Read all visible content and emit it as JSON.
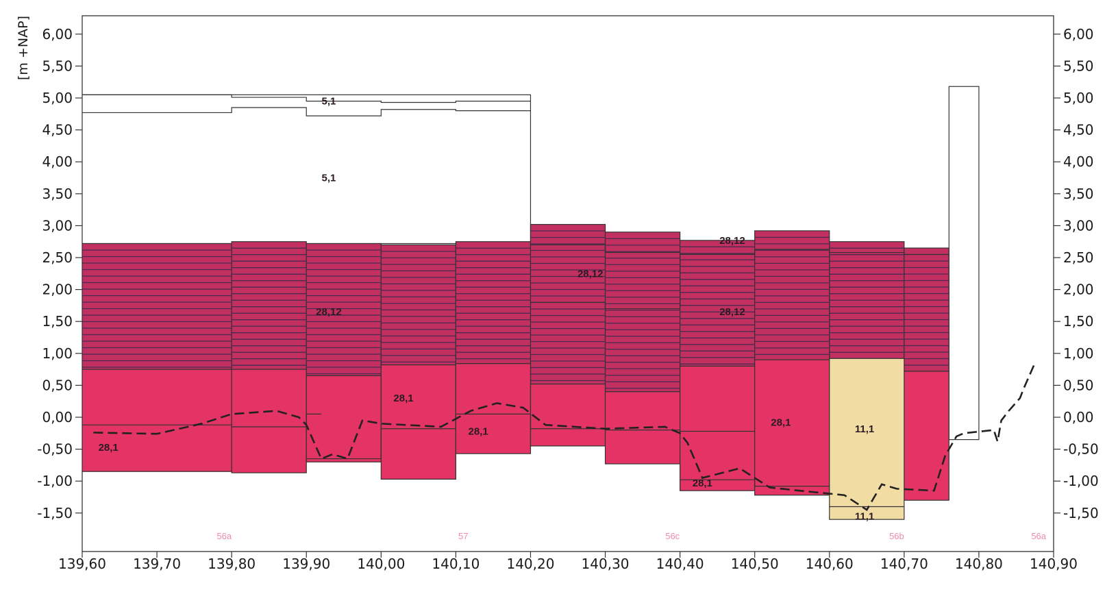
{
  "chart_data": {
    "type": "area",
    "ylabel": "[m +NAP]",
    "xlim": [
      139.6,
      140.9
    ],
    "ylim": [
      -2.0,
      6.0
    ],
    "x_ticks": [
      "139,60",
      "139,70",
      "139,80",
      "139,90",
      "140,00",
      "140,10",
      "140,20",
      "140,30",
      "140,40",
      "140,50",
      "140,60",
      "140,70",
      "140,80",
      "140,90"
    ],
    "x_tick_values": [
      139.6,
      139.7,
      139.8,
      139.9,
      140.0,
      140.1,
      140.2,
      140.3,
      140.4,
      140.5,
      140.6,
      140.7,
      140.8,
      140.9
    ],
    "y_ticks": [
      "6,00",
      "5,50",
      "5,00",
      "4,50",
      "4,00",
      "3,50",
      "3,00",
      "2,50",
      "2,00",
      "1,50",
      "1,00",
      "0,50",
      "0,00",
      "-0,50",
      "-1,00",
      "-1,50"
    ],
    "y_tick_values": [
      6.0,
      5.5,
      5.0,
      4.5,
      4.0,
      3.5,
      3.0,
      2.5,
      2.0,
      1.5,
      1.0,
      0.5,
      0.0,
      -0.5,
      -1.0,
      -1.5
    ],
    "grid": false,
    "colors": {
      "layer_28_12": "#c23062",
      "layer_28_12_line": "#4a2a50",
      "layer_28_1": "#e33465",
      "layer_11_1": "#f1dca4",
      "layer_5_1": "#ffffff",
      "outline": "#333333",
      "ground_line": "#222222",
      "region_text": "#f08aa8",
      "axis": "#333333"
    },
    "layers_28_1": [
      {
        "x0": 139.6,
        "x1": 139.8,
        "ytop": 0.75,
        "ybot": -0.85
      },
      {
        "x0": 139.8,
        "x1": 139.9,
        "ytop": 0.75,
        "ybot": -0.87
      },
      {
        "x0": 139.9,
        "x1": 140.0,
        "ytop": 0.65,
        "ybot": -0.7
      },
      {
        "x0": 140.0,
        "x1": 140.1,
        "ytop": 0.82,
        "ybot": -0.97
      },
      {
        "x0": 140.1,
        "x1": 140.2,
        "ytop": 0.84,
        "ybot": -0.57
      },
      {
        "x0": 140.2,
        "x1": 140.3,
        "ytop": 0.52,
        "ybot": -0.45
      },
      {
        "x0": 140.3,
        "x1": 140.4,
        "ytop": 0.4,
        "ybot": -0.73
      },
      {
        "x0": 140.4,
        "x1": 140.5,
        "ytop": 0.8,
        "ybot": -1.15
      },
      {
        "x0": 140.5,
        "x1": 140.6,
        "ytop": 0.9,
        "ybot": -1.22
      },
      {
        "x0": 140.7,
        "x1": 140.76,
        "ytop": 0.72,
        "ybot": -1.3
      }
    ],
    "layers_28_12": [
      {
        "x0": 139.6,
        "x1": 139.8,
        "ytop": 2.72,
        "ybot": 0.75
      },
      {
        "x0": 139.8,
        "x1": 139.9,
        "ytop": 2.75,
        "ybot": 0.75
      },
      {
        "x0": 139.9,
        "x1": 140.0,
        "ytop": 2.72,
        "ybot": 0.65
      },
      {
        "x0": 140.0,
        "x1": 140.1,
        "ytop": 2.7,
        "ybot": 0.82
      },
      {
        "x0": 140.1,
        "x1": 140.2,
        "ytop": 2.75,
        "ybot": 0.84
      },
      {
        "x0": 140.2,
        "x1": 140.3,
        "ytop": 3.02,
        "ybot": 0.52
      },
      {
        "x0": 140.3,
        "x1": 140.4,
        "ytop": 2.9,
        "ybot": 0.4
      },
      {
        "x0": 140.4,
        "x1": 140.5,
        "ytop": 2.77,
        "ybot": 0.8
      },
      {
        "x0": 140.5,
        "x1": 140.6,
        "ytop": 2.92,
        "ybot": 0.9
      },
      {
        "x0": 140.6,
        "x1": 140.7,
        "ytop": 2.75,
        "ybot": 0.92
      },
      {
        "x0": 140.7,
        "x1": 140.76,
        "ytop": 2.65,
        "ybot": 0.72
      }
    ],
    "layers_11_1": [
      {
        "x0": 140.6,
        "x1": 140.7,
        "ytop": 0.92,
        "ybot": -1.6
      }
    ],
    "layers_5_1": [
      {
        "x0": 139.6,
        "x1": 140.2,
        "ytop": 5.05,
        "ybot": 2.72
      },
      {
        "x0": 140.76,
        "x1": 140.8,
        "ytop": 5.18,
        "ybot": -0.35
      }
    ],
    "inner_lines": [
      {
        "pts": [
          [
            139.6,
            4.77
          ],
          [
            139.8,
            4.77
          ],
          [
            139.8,
            4.85
          ],
          [
            139.9,
            4.85
          ],
          [
            139.9,
            4.72
          ],
          [
            140.0,
            4.72
          ],
          [
            140.0,
            4.82
          ],
          [
            140.1,
            4.82
          ],
          [
            140.1,
            4.8
          ],
          [
            140.2,
            4.8
          ]
        ]
      },
      {
        "pts": [
          [
            139.6,
            5.05
          ],
          [
            139.8,
            5.05
          ],
          [
            139.8,
            5.01
          ],
          [
            139.9,
            5.01
          ],
          [
            139.9,
            4.95
          ],
          [
            140.0,
            4.95
          ],
          [
            140.0,
            4.93
          ],
          [
            140.1,
            4.93
          ],
          [
            140.1,
            4.95
          ],
          [
            140.2,
            4.95
          ]
        ]
      },
      {
        "pts": [
          [
            140.2,
            2.7
          ],
          [
            140.3,
            2.7
          ],
          [
            140.3,
            2.58
          ],
          [
            140.4,
            2.58
          ],
          [
            140.4,
            1.7
          ],
          [
            140.3,
            1.7
          ],
          [
            140.3,
            1.8
          ],
          [
            140.2,
            1.8
          ]
        ]
      },
      {
        "pts": [
          [
            140.4,
            2.55
          ],
          [
            140.5,
            2.55
          ],
          [
            140.5,
            2.63
          ],
          [
            140.6,
            2.63
          ],
          [
            140.6,
            2.58
          ],
          [
            140.7,
            2.58
          ],
          [
            140.7,
            2.55
          ],
          [
            140.76,
            2.55
          ]
        ]
      },
      {
        "pts": [
          [
            139.6,
            -0.12
          ],
          [
            139.8,
            -0.12
          ],
          [
            139.8,
            -0.15
          ],
          [
            139.9,
            -0.15
          ],
          [
            139.9,
            0.05
          ],
          [
            139.92,
            0.05
          ]
        ]
      },
      {
        "pts": [
          [
            139.9,
            -0.65
          ],
          [
            140.0,
            -0.65
          ],
          [
            140.0,
            -0.18
          ],
          [
            140.1,
            -0.18
          ],
          [
            140.1,
            0.05
          ],
          [
            140.2,
            0.05
          ],
          [
            140.2,
            -0.18
          ],
          [
            140.3,
            -0.18
          ],
          [
            140.3,
            -0.2
          ],
          [
            140.4,
            -0.2
          ],
          [
            140.4,
            -0.22
          ],
          [
            140.5,
            -0.22
          ]
        ]
      },
      {
        "pts": [
          [
            140.4,
            -0.98
          ],
          [
            140.5,
            -0.98
          ],
          [
            140.5,
            -1.08
          ],
          [
            140.6,
            -1.08
          ]
        ]
      },
      {
        "pts": [
          [
            140.6,
            -1.4
          ],
          [
            140.7,
            -1.4
          ]
        ]
      }
    ],
    "ground_line": {
      "x": [
        139.615,
        139.7,
        139.76,
        139.8,
        139.86,
        139.89,
        139.9,
        139.92,
        139.935,
        139.955,
        139.975,
        140.0,
        140.08,
        140.12,
        140.155,
        140.19,
        140.22,
        140.3,
        140.38,
        140.4,
        140.41,
        140.43,
        140.48,
        140.5,
        140.52,
        140.56,
        140.62,
        140.65,
        140.67,
        140.69,
        140.74,
        140.755,
        140.77,
        140.78,
        140.82,
        140.825,
        140.83,
        140.84,
        140.855,
        140.86,
        140.875
      ],
      "y": [
        -0.24,
        -0.26,
        -0.1,
        0.05,
        0.1,
        0.0,
        -0.12,
        -0.65,
        -0.58,
        -0.65,
        -0.05,
        -0.1,
        -0.15,
        0.1,
        0.22,
        0.15,
        -0.12,
        -0.18,
        -0.15,
        -0.25,
        -0.4,
        -0.95,
        -0.8,
        -0.95,
        -1.1,
        -1.15,
        -1.22,
        -1.45,
        -1.05,
        -1.12,
        -1.15,
        -0.6,
        -0.3,
        -0.25,
        -0.2,
        -0.38,
        -0.05,
        0.1,
        0.3,
        0.45,
        0.85
      ]
    },
    "zone_labels": [
      {
        "text": "5,1",
        "x": 139.93,
        "y": 4.95
      },
      {
        "text": "5,1",
        "x": 139.93,
        "y": 3.75
      },
      {
        "text": "28,12",
        "x": 139.93,
        "y": 1.65
      },
      {
        "text": "28,12",
        "x": 140.28,
        "y": 2.25
      },
      {
        "text": "28,12",
        "x": 140.47,
        "y": 2.77
      },
      {
        "text": "28,12",
        "x": 140.47,
        "y": 1.65
      },
      {
        "text": "28,1",
        "x": 140.03,
        "y": 0.3
      },
      {
        "text": "28,1",
        "x": 140.13,
        "y": -0.22
      },
      {
        "text": "28,1",
        "x": 139.635,
        "y": -0.47
      },
      {
        "text": "28,1",
        "x": 140.535,
        "y": -0.08
      },
      {
        "text": "28,1",
        "x": 140.43,
        "y": -1.03
      },
      {
        "text": "11,1",
        "x": 140.647,
        "y": -0.18
      },
      {
        "text": "11,1",
        "x": 140.647,
        "y": -1.55
      }
    ],
    "region_labels": [
      {
        "text": "56a",
        "x": 139.79
      },
      {
        "text": "57",
        "x": 140.11
      },
      {
        "text": "56c",
        "x": 140.39
      },
      {
        "text": "56b",
        "x": 140.69
      },
      {
        "text": "56a",
        "x": 140.88
      }
    ]
  }
}
